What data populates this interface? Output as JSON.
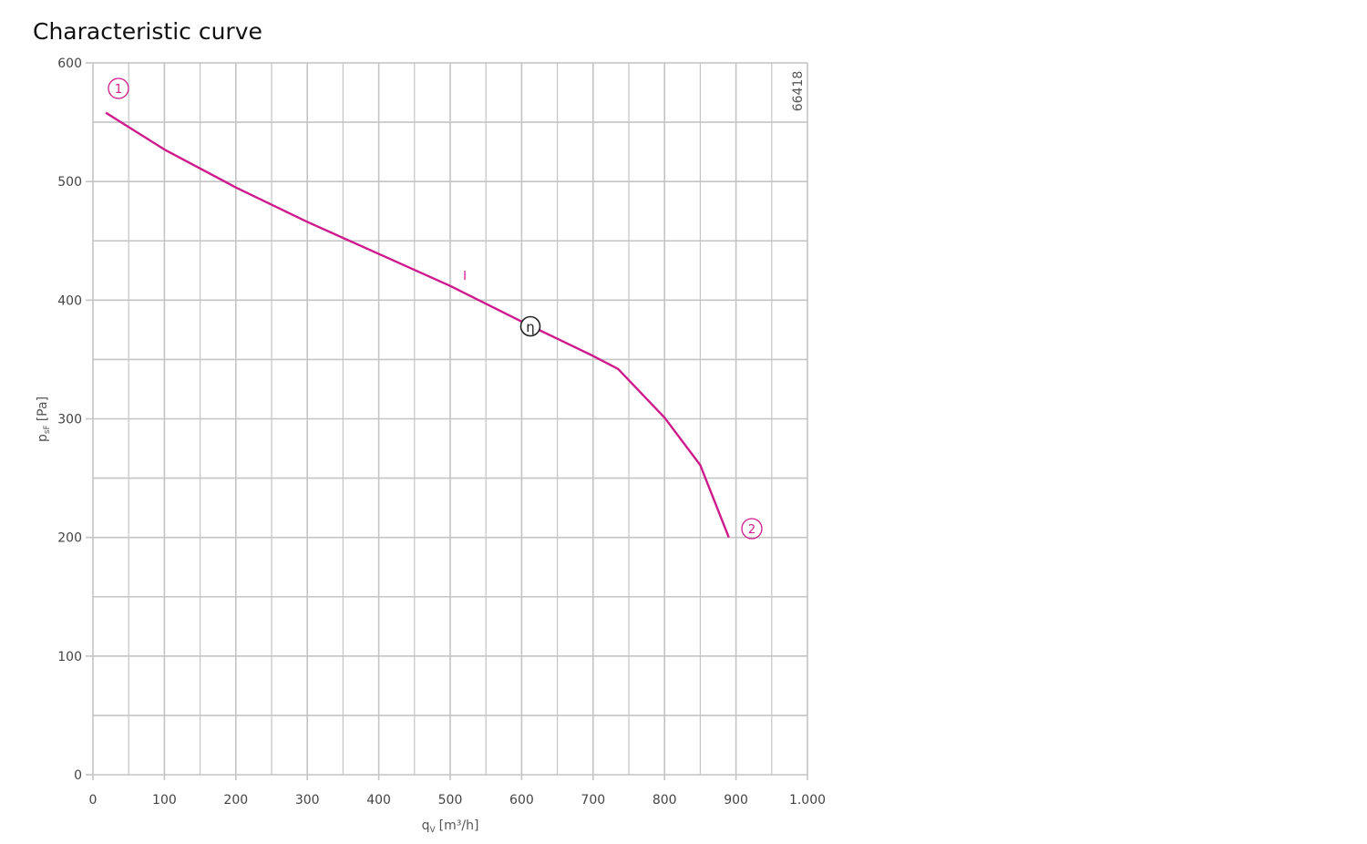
{
  "chart_data": {
    "type": "line",
    "title": "Characteristic curve",
    "x_label": {
      "main": "q",
      "sub": "V",
      "unit": "[m³/h]"
    },
    "y_label": {
      "main": "p",
      "sub": "sF",
      "unit": "[Pa]"
    },
    "xlim": [
      0,
      1000
    ],
    "ylim": [
      0,
      600
    ],
    "xticks": [
      0,
      100,
      200,
      300,
      400,
      500,
      600,
      700,
      800,
      900,
      {
        "value": 1000,
        "label": "1.000"
      }
    ],
    "yticks": [
      0,
      100,
      200,
      300,
      400,
      500,
      600
    ],
    "x_minor_grid": [
      50,
      150,
      250,
      350,
      450,
      550,
      650,
      750,
      850,
      950
    ],
    "y_minor_grid": [
      50,
      150,
      250,
      350,
      450,
      550
    ],
    "grid": true,
    "grid_color": "#c4c4c4",
    "series": [
      {
        "name": "I",
        "color": "#cf1a8c",
        "x": [
          18,
          100,
          200,
          300,
          400,
          500,
          600,
          700,
          735,
          800,
          850,
          890
        ],
        "values": [
          558,
          527,
          495,
          466,
          439,
          412,
          382,
          353,
          342,
          301,
          261,
          200
        ]
      }
    ],
    "annotations": {
      "start": "1",
      "end": "2",
      "efficiency": "η",
      "code": "66418"
    }
  }
}
